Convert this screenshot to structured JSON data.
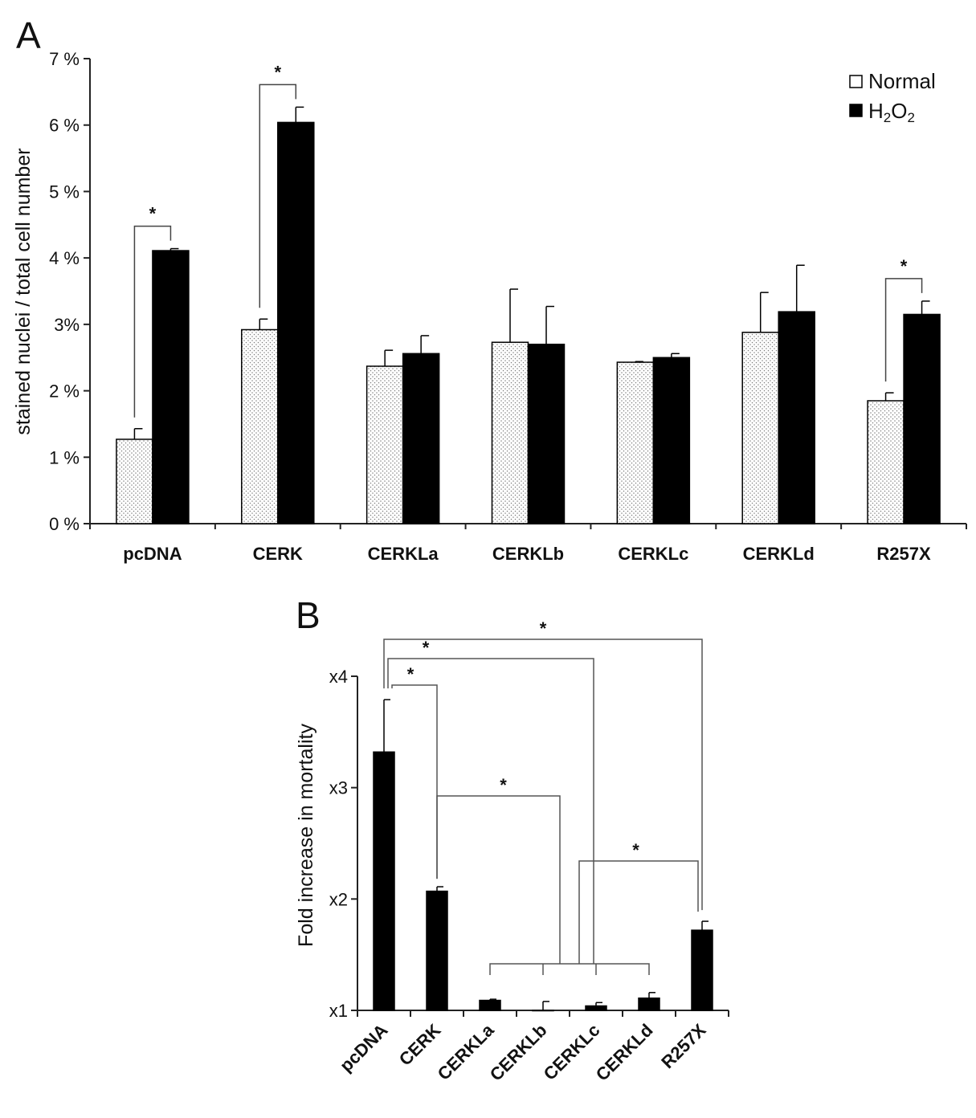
{
  "figure": {
    "panel_a_letter": "A",
    "panel_b_letter": "B",
    "colors": {
      "normal_fill": "#ffffff",
      "normal_dots": "#7a7a7a",
      "h2o2_fill": "#000000",
      "axis": "#222222"
    }
  },
  "chart_data": [
    {
      "type": "bar",
      "panel": "A",
      "categories": [
        "pcDNA",
        "CERK",
        "CERKLa",
        "CERKLb",
        "CERKLc",
        "CERKLd",
        "R257X"
      ],
      "series": [
        {
          "name": "Normal",
          "values": [
            1.27,
            2.92,
            2.37,
            2.73,
            2.43,
            2.88,
            1.85
          ],
          "errors": [
            0.16,
            0.16,
            0.24,
            0.8,
            0.01,
            0.6,
            0.12
          ]
        },
        {
          "name": "H2O2",
          "values": [
            4.11,
            6.04,
            2.56,
            2.7,
            2.5,
            3.19,
            3.15
          ],
          "errors": [
            0.03,
            0.23,
            0.27,
            0.57,
            0.06,
            0.7,
            0.2
          ]
        }
      ],
      "ylabel": "stained nuclei / total cell number",
      "ylim": [
        0,
        7
      ],
      "yticks": [
        "0 %",
        "1 %",
        "2 %",
        "3%",
        "4 %",
        "5 %",
        "6 %",
        "7 %"
      ],
      "legend": {
        "position": "top-right",
        "entries": [
          "Normal",
          "H2O2"
        ]
      },
      "significance": [
        {
          "category": "pcDNA",
          "label": "*"
        },
        {
          "category": "CERK",
          "label": "*"
        },
        {
          "category": "R257X",
          "label": "*"
        }
      ],
      "grid": false
    },
    {
      "type": "bar",
      "panel": "B",
      "categories": [
        "pcDNA",
        "CERK",
        "CERKLa",
        "CERKLb",
        "CERKLc",
        "CERKLd",
        "R257X"
      ],
      "series": [
        {
          "values": [
            3.32,
            2.07,
            1.09,
            1.0,
            1.04,
            1.11,
            1.72
          ],
          "errors": [
            0.47,
            0.04,
            0.01,
            0.08,
            0.03,
            0.05,
            0.08
          ]
        }
      ],
      "ylabel": "Fold increase in mortality",
      "ylim": [
        1,
        4
      ],
      "yticks": [
        "x1",
        "x2",
        "x3",
        "x4"
      ],
      "significance": [
        {
          "from": "pcDNA",
          "to": "R257X",
          "label": "*"
        },
        {
          "from": "pcDNA",
          "to": "CERKLc",
          "label": "*"
        },
        {
          "from": "pcDNA",
          "to": "CERK",
          "label": "*"
        },
        {
          "from": "CERK",
          "to": "CERKLa–CERKLd",
          "label": "*"
        },
        {
          "from": "CERKLa–CERKLd",
          "to": "R257X",
          "label": "*"
        }
      ],
      "grid": false
    }
  ]
}
